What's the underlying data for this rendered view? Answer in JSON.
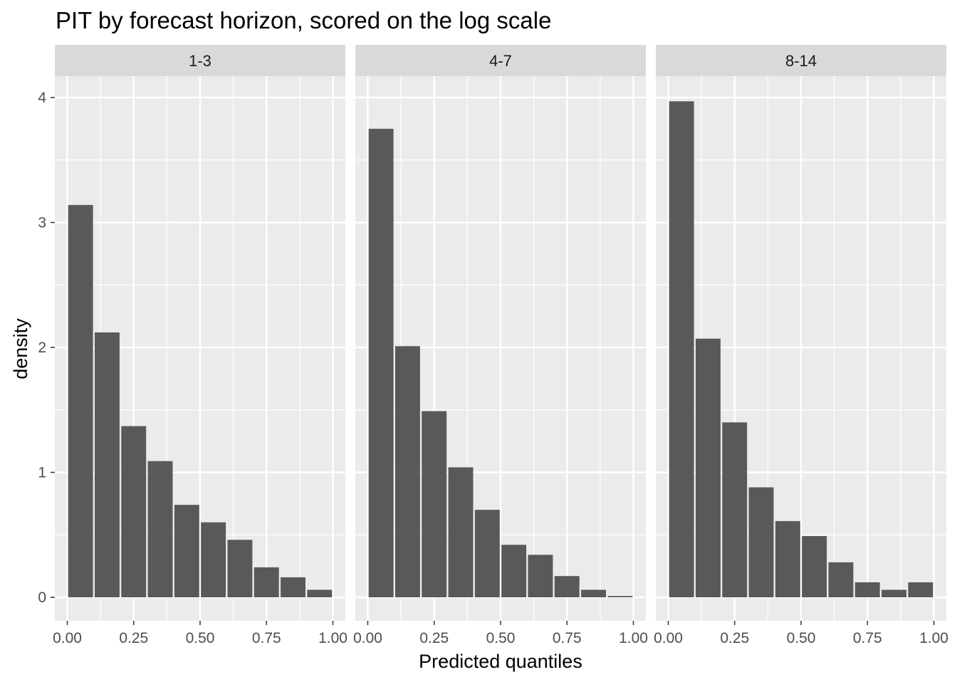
{
  "chart_data": {
    "type": "bar",
    "title": "PIT by forecast horizon, scored on the log scale",
    "xlabel": "Predicted quantiles",
    "ylabel": "density",
    "xlim": [
      0,
      1
    ],
    "ylim": [
      0,
      4
    ],
    "x_ticks": [
      0,
      0.25,
      0.5,
      0.75,
      1
    ],
    "x_tick_labels": [
      "0.00",
      "0.25",
      "0.50",
      "0.75",
      "1.00"
    ],
    "y_ticks": [
      0,
      1,
      2,
      3,
      4
    ],
    "y_tick_labels": [
      "0",
      "1",
      "2",
      "3",
      "4"
    ],
    "bin_width": 0.1,
    "bin_centers": [
      0.05,
      0.15,
      0.25,
      0.35,
      0.45,
      0.55,
      0.65,
      0.75,
      0.85,
      0.95
    ],
    "grid": true,
    "bar_color": "#595959",
    "panel_bg": "#ebebeb",
    "strip_bg": "#d9d9d9",
    "panels": [
      {
        "label": "1-3",
        "values": [
          3.14,
          2.12,
          1.37,
          1.09,
          0.74,
          0.6,
          0.46,
          0.24,
          0.16,
          0.06
        ]
      },
      {
        "label": "4-7",
        "values": [
          3.75,
          2.01,
          1.49,
          1.04,
          0.7,
          0.42,
          0.34,
          0.17,
          0.06,
          0.01
        ]
      },
      {
        "label": "8-14",
        "values": [
          3.97,
          2.07,
          1.4,
          0.88,
          0.61,
          0.49,
          0.28,
          0.12,
          0.06,
          0.12
        ]
      }
    ]
  }
}
